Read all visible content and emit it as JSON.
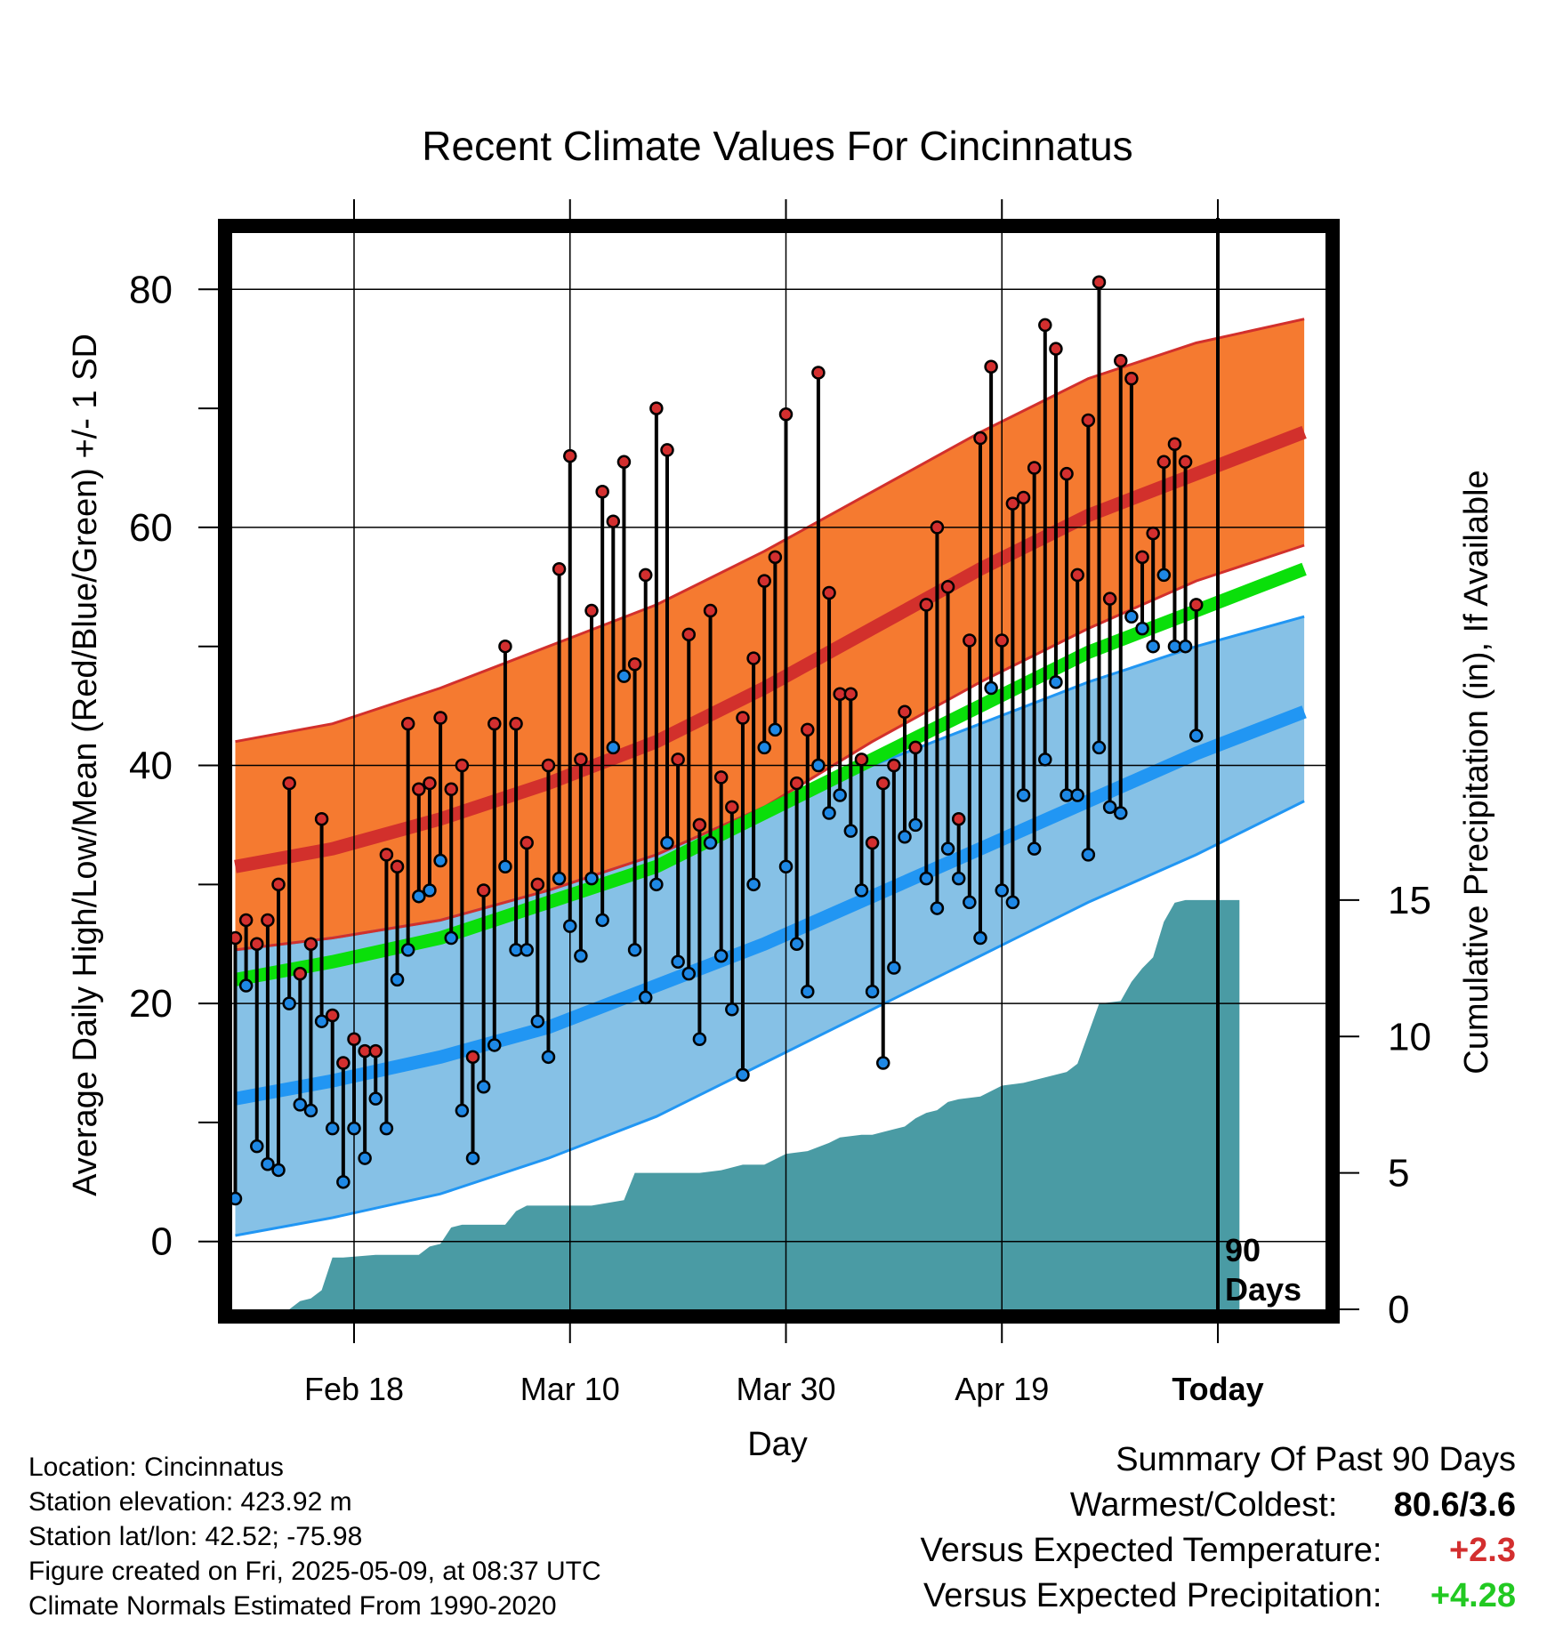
{
  "title": "Recent Climate Values For Cincinnatus",
  "info": {
    "location": "Location: Cincinnatus",
    "elevation": "Station elevation: 423.92 m",
    "latlon": "Station lat/lon: 42.52; -75.98",
    "created": "Figure created on Fri, 2025-05-09, at 08:37 UTC",
    "normals": "Climate Normals Estimated From 1990-2020"
  },
  "summary": {
    "heading": "Summary Of Past 90 Days",
    "warm_cold_label": "Warmest/Coldest:",
    "warm_cold_value": "80.6/3.6",
    "temp_label": "Versus Expected Temperature:",
    "temp_value": "+2.3",
    "temp_color": "#d32f2f",
    "precip_label": "Versus Expected Precipitation:",
    "precip_value": "+4.28",
    "precip_color": "#22c922"
  },
  "chart_data": {
    "type": "line",
    "title": "Recent Climate Values For Cincinnatus",
    "xlabel": "Day",
    "ylabel": "Average Daily High/Low/Mean (Red/Blue/Green) +/- 1 SD",
    "y2label": "Cumulative Precipitation (in), If Available",
    "xlim": [
      1,
      100
    ],
    "ylim": [
      -5.7,
      86
    ],
    "y2lim": [
      0,
      40
    ],
    "yticks": [
      0,
      20,
      40,
      60,
      80
    ],
    "y2ticks": [
      0,
      5,
      10,
      15
    ],
    "xticks": [
      {
        "day": 12,
        "label": "Feb 18"
      },
      {
        "day": 32,
        "label": "Mar 10"
      },
      {
        "day": 52,
        "label": "Mar 30"
      },
      {
        "day": 72,
        "label": "Apr 19"
      },
      {
        "day": 92,
        "label": "Today"
      }
    ],
    "today_marker": {
      "day": 92,
      "label_line1": "90",
      "label_line2": "Days"
    },
    "grid": true,
    "colors": {
      "high_band": "#f57a30",
      "high_mean": "#d2302c",
      "low_band": "#86c1e6",
      "low_mean": "#2196f3",
      "mean": "#0adf0a",
      "precip": "#4a9ba4",
      "high_dot": "#d32f2f",
      "low_dot": "#1e88e5"
    },
    "normals": {
      "x": [
        1,
        10,
        20,
        30,
        40,
        50,
        60,
        70,
        80,
        90,
        100
      ],
      "high_mean": [
        31.5,
        33.0,
        35.5,
        38.5,
        42.0,
        46.5,
        51.5,
        56.5,
        61.0,
        64.5,
        68.0
      ],
      "high_sd_upper": [
        42.0,
        43.5,
        46.5,
        50.0,
        53.5,
        58.0,
        63.0,
        68.0,
        72.5,
        75.5,
        77.5
      ],
      "high_sd_lower": [
        24.5,
        25.5,
        27.0,
        29.5,
        32.5,
        36.5,
        42.0,
        47.0,
        51.5,
        55.5,
        58.5
      ],
      "low_mean": [
        12.0,
        13.5,
        15.5,
        18.0,
        21.5,
        25.0,
        29.0,
        33.0,
        37.0,
        41.0,
        44.5
      ],
      "low_sd_upper": [
        24.5,
        25.5,
        27.0,
        29.5,
        32.5,
        36.5,
        40.0,
        43.5,
        47.0,
        50.0,
        52.5
      ],
      "low_sd_lower": [
        0.5,
        2.0,
        4.0,
        7.0,
        10.5,
        15.0,
        19.5,
        24.0,
        28.5,
        32.5,
        37.0
      ],
      "mean": [
        22.0,
        23.5,
        25.5,
        28.5,
        31.5,
        36.0,
        40.5,
        45.0,
        49.5,
        53.0,
        56.5
      ]
    },
    "observed": {
      "day": [
        1,
        2,
        3,
        4,
        5,
        6,
        7,
        8,
        9,
        10,
        11,
        12,
        13,
        14,
        15,
        16,
        17,
        18,
        19,
        20,
        21,
        22,
        23,
        24,
        25,
        26,
        27,
        28,
        29,
        30,
        31,
        32,
        33,
        34,
        35,
        36,
        37,
        38,
        39,
        40,
        41,
        42,
        43,
        44,
        45,
        46,
        47,
        48,
        49,
        50,
        51,
        52,
        53,
        54,
        55,
        56,
        57,
        58,
        59,
        60,
        61,
        62,
        63,
        64,
        65,
        66,
        67,
        68,
        69,
        70,
        71,
        72,
        73,
        74,
        75,
        76,
        77,
        78,
        79,
        80,
        81,
        82,
        83,
        84,
        85,
        86,
        87,
        88,
        89,
        90,
        91,
        92
      ],
      "high": [
        25.5,
        27.0,
        25.0,
        27.0,
        30.0,
        38.5,
        22.5,
        25.0,
        35.5,
        19.0,
        15.0,
        17.0,
        16.0,
        16.0,
        32.5,
        31.5,
        43.5,
        38.0,
        38.5,
        44.0,
        38.0,
        40.0,
        15.5,
        29.5,
        43.5,
        50.0,
        43.5,
        33.5,
        30.0,
        40.0,
        56.5,
        66.0,
        40.5,
        53.0,
        63.0,
        60.5,
        65.5,
        48.5,
        56.0,
        70.0,
        66.5,
        40.5,
        51.0,
        35.0,
        53.0,
        39.0,
        36.5,
        44.0,
        49.0,
        55.5,
        57.5,
        69.5,
        38.5,
        43.0,
        73.0,
        54.5,
        46.0,
        46.0,
        40.5,
        33.5,
        38.5,
        40.0,
        44.5,
        41.5,
        53.5,
        60.0,
        55.0,
        35.5,
        50.5,
        67.5,
        73.5,
        50.5,
        62.0,
        62.5,
        65.0,
        77.0,
        75.0,
        64.5,
        56.0,
        69.0,
        80.6,
        54.0,
        74.0,
        72.5,
        57.5,
        59.5,
        65.5,
        67.0,
        65.5,
        53.5
      ],
      "low": [
        3.6,
        21.5,
        8.0,
        6.5,
        6.0,
        20.0,
        11.5,
        11.0,
        18.5,
        9.5,
        5.0,
        9.5,
        7.0,
        12.0,
        9.5,
        22.0,
        24.5,
        29.0,
        29.5,
        32.0,
        25.5,
        11.0,
        7.0,
        13.0,
        16.5,
        31.5,
        24.5,
        24.5,
        18.5,
        15.5,
        30.5,
        26.5,
        24.0,
        30.5,
        27.0,
        41.5,
        47.5,
        24.5,
        20.5,
        30.0,
        33.5,
        23.5,
        22.5,
        17.0,
        33.5,
        24.0,
        19.5,
        14.0,
        30.0,
        41.5,
        43.0,
        31.5,
        25.0,
        21.0,
        40.0,
        36.0,
        37.5,
        34.5,
        29.5,
        21.0,
        15.0,
        23.0,
        34.0,
        35.0,
        30.5,
        28.0,
        33.0,
        30.5,
        28.5,
        25.5,
        46.5,
        29.5,
        28.5,
        37.5,
        33.0,
        40.5,
        47.0,
        37.5,
        37.5,
        32.5,
        41.5,
        36.5,
        36.0,
        52.5,
        51.5,
        50.0,
        56.0,
        50.0,
        50.0,
        42.5
      ]
    },
    "precip_cumulative": {
      "day": [
        1,
        6,
        7,
        8,
        9,
        10,
        11,
        14,
        18,
        19,
        20,
        21,
        22,
        26,
        27,
        28,
        31,
        34,
        37,
        38,
        41,
        44,
        46,
        48,
        50,
        52,
        54,
        56,
        57,
        59,
        60,
        61,
        62,
        63,
        64,
        65,
        66,
        67,
        68,
        70,
        72,
        74,
        76,
        78,
        79,
        80,
        81,
        83,
        84,
        85,
        86,
        87,
        88,
        89,
        93,
        94
      ],
      "values": [
        0,
        0,
        0.3,
        0.4,
        0.7,
        1.9,
        1.9,
        2.0,
        2.0,
        2.3,
        2.4,
        3.0,
        3.1,
        3.1,
        3.6,
        3.8,
        3.8,
        3.8,
        4.0,
        5.0,
        5.0,
        5.0,
        5.1,
        5.3,
        5.3,
        5.7,
        5.8,
        6.1,
        6.3,
        6.4,
        6.4,
        6.5,
        6.6,
        6.7,
        7.0,
        7.2,
        7.3,
        7.6,
        7.7,
        7.8,
        8.2,
        8.3,
        8.5,
        8.7,
        9.0,
        10.1,
        11.2,
        11.3,
        12.0,
        12.5,
        12.9,
        14.2,
        14.9,
        15.0,
        15.0,
        15.0
      ]
    }
  }
}
